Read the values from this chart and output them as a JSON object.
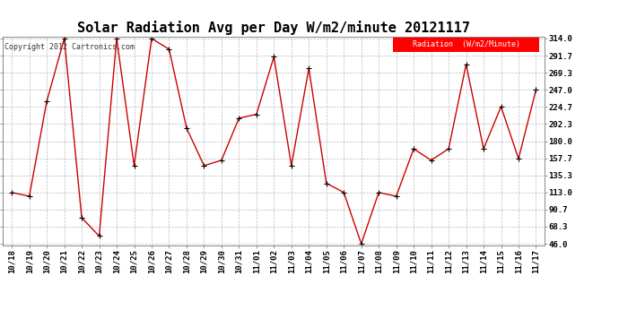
{
  "title": "Solar Radiation Avg per Day W/m2/minute 20121117",
  "copyright": "Copyright 2012 Cartronics.com",
  "legend_label": "Radiation  (W/m2/Minute)",
  "x_labels": [
    "10/18",
    "10/19",
    "10/20",
    "10/21",
    "10/22",
    "10/23",
    "10/24",
    "10/25",
    "10/26",
    "10/27",
    "10/28",
    "10/29",
    "10/30",
    "10/31",
    "11/01",
    "11/02",
    "11/03",
    "11/04",
    "11/05",
    "11/06",
    "11/07",
    "11/08",
    "11/09",
    "11/10",
    "11/11",
    "11/12",
    "11/13",
    "11/14",
    "11/15",
    "11/16",
    "11/17"
  ],
  "y_values": [
    113.0,
    108.0,
    232.0,
    314.0,
    80.0,
    56.0,
    314.0,
    148.0,
    314.0,
    300.0,
    197.0,
    148.0,
    155.0,
    210.0,
    215.0,
    290.0,
    148.0,
    275.0,
    125.0,
    113.0,
    46.0,
    113.0,
    108.0,
    170.0,
    155.0,
    170.0,
    280.0,
    170.0,
    225.0,
    157.0,
    247.0
  ],
  "y_min": 46.0,
  "y_max": 314.0,
  "y_ticks": [
    46.0,
    68.3,
    90.7,
    113.0,
    135.3,
    157.7,
    180.0,
    202.3,
    224.7,
    247.0,
    269.3,
    291.7,
    314.0
  ],
  "line_color": "#cc0000",
  "marker_color": "#000000",
  "bg_color": "#ffffff",
  "grid_color": "#bbbbbb",
  "title_fontsize": 11,
  "tick_fontsize": 6.5
}
